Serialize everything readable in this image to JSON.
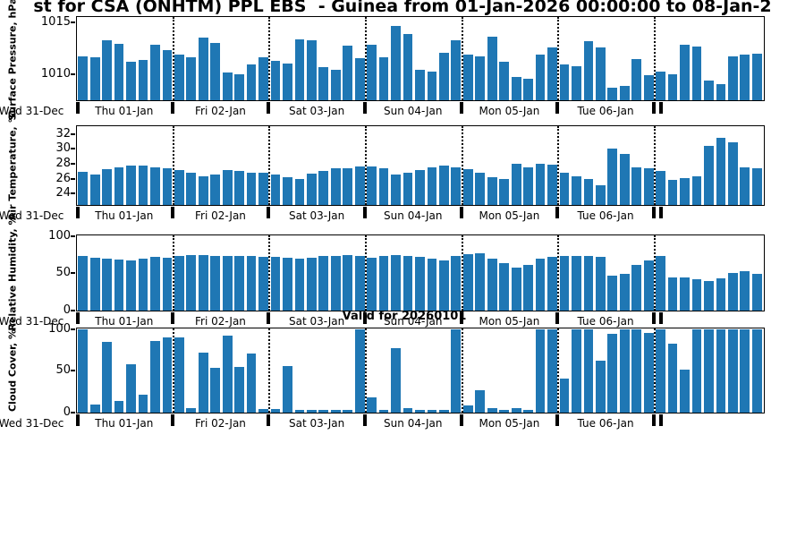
{
  "title": "st for CSA (ONHTM) PPL EBS  - Guinea from 01-Jan-2026 00:00:00 to 08-Jan-2",
  "valid_label": "Valid for 20260101",
  "colors": {
    "bar": "#1f77b4",
    "axis": "#000000"
  },
  "bars_per_day": 8,
  "x_day_labels": [
    "Wed 31-Dec",
    "Thu 01-Jan",
    "Fri 02-Jan",
    "Sat 03-Jan",
    "Sun 04-Jan",
    "Mon 05-Jan",
    "Tue 06-Jan"
  ],
  "chart_data": [
    {
      "type": "bar",
      "title": "",
      "ylabel": "Surface Pressure, hPa",
      "ylim": [
        1007.5,
        1015.5
      ],
      "yticks": [
        1010,
        1015
      ],
      "grid": "vertical dotted lines at day boundaries",
      "values": [
        1011.8,
        1011.7,
        1013.3,
        1013.0,
        1011.2,
        1011.4,
        1012.9,
        1012.4,
        1011.9,
        1011.7,
        1013.6,
        1013.1,
        1010.2,
        1010.0,
        1011.0,
        1011.7,
        1011.3,
        1011.1,
        1013.4,
        1013.3,
        1010.7,
        1010.5,
        1012.8,
        1011.6,
        1012.9,
        1011.7,
        1014.7,
        1013.9,
        1010.5,
        1010.3,
        1012.1,
        1013.3,
        1011.9,
        1011.8,
        1013.7,
        1011.2,
        1009.8,
        1009.6,
        1011.9,
        1012.6,
        1011.0,
        1010.8,
        1013.2,
        1012.6,
        1008.7,
        1008.9,
        1011.5,
        1009.9,
        1010.3,
        1010.0,
        1012.9,
        1012.7,
        1009.4,
        1009.1,
        1011.8,
        1011.9,
        1012.0
      ]
    },
    {
      "type": "bar",
      "title": "",
      "ylabel": "Air Temperature, °C",
      "ylim": [
        22.5,
        33
      ],
      "yticks": [
        24,
        26,
        28,
        30,
        32
      ],
      "grid": "vertical dotted lines at day boundaries",
      "values": [
        27.0,
        26.6,
        27.3,
        27.6,
        27.8,
        27.8,
        27.6,
        27.5,
        27.2,
        26.8,
        26.4,
        26.6,
        27.2,
        27.1,
        26.9,
        26.8,
        26.6,
        26.3,
        26.0,
        26.7,
        27.1,
        27.4,
        27.5,
        27.7,
        27.7,
        27.4,
        26.6,
        26.8,
        27.2,
        27.6,
        27.8,
        27.6,
        27.3,
        26.9,
        26.2,
        26.0,
        28.1,
        27.6,
        28.1,
        27.9,
        26.9,
        26.4,
        26.0,
        25.2,
        30.1,
        29.4,
        27.6,
        27.4,
        27.1,
        25.9,
        26.1,
        26.4,
        30.5,
        31.6,
        30.9,
        27.6,
        27.4
      ]
    },
    {
      "type": "bar",
      "title": "",
      "ylabel": "Relative Humidity, %",
      "ylim": [
        0,
        100
      ],
      "yticks": [
        0,
        50,
        100
      ],
      "grid": "vertical dotted lines at day boundaries",
      "values": [
        73,
        71,
        70,
        69,
        68,
        70,
        72,
        71,
        73,
        75,
        75,
        74,
        73,
        74,
        73,
        72,
        72,
        71,
        70,
        71,
        73,
        74,
        75,
        74,
        71,
        73,
        75,
        74,
        72,
        70,
        68,
        73,
        76,
        77,
        70,
        64,
        58,
        62,
        70,
        72,
        73,
        74,
        73,
        72,
        47,
        50,
        62,
        67,
        73,
        45,
        44,
        42,
        40,
        43,
        51,
        53,
        50
      ]
    },
    {
      "type": "bar",
      "title": "",
      "ylabel": "Cloud Cover, %",
      "ylim": [
        0,
        100
      ],
      "yticks": [
        0,
        50,
        100
      ],
      "grid": "vertical dotted lines at day boundaries",
      "values": [
        100,
        10,
        85,
        14,
        58,
        21,
        86,
        90,
        90,
        5,
        72,
        54,
        93,
        55,
        71,
        4,
        4,
        56,
        3,
        3,
        3,
        3,
        3,
        100,
        18,
        3,
        77,
        5,
        3,
        3,
        3,
        100,
        9,
        27,
        5,
        3,
        5,
        3,
        100,
        100,
        41,
        100,
        100,
        62,
        95,
        100,
        100,
        96,
        100,
        83,
        52,
        100,
        100,
        100,
        100,
        100,
        100
      ]
    }
  ]
}
